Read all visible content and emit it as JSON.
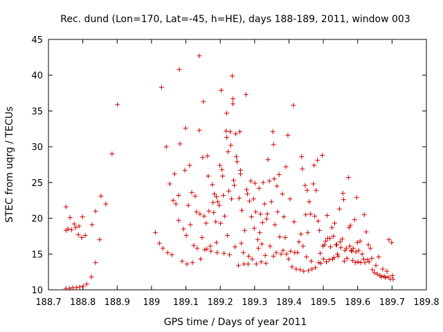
{
  "chart_data": {
    "type": "scatter",
    "title": "Rec. dund (Lon=170, Lat=-45, h=HE), days 188-189, 2011, window 003",
    "xlabel": "GPS time / Days of year 2011",
    "ylabel": "STEC from uqrg / TECUs",
    "xlim": [
      188.7,
      189.8
    ],
    "ylim": [
      10,
      45
    ],
    "xticks": [
      "188.7",
      "188.8",
      "188.9",
      "189",
      "189.1",
      "189.2",
      "189.3",
      "189.4",
      "189.5",
      "189.6",
      "189.7",
      "189.8"
    ],
    "yticks": [
      "10",
      "15",
      "20",
      "25",
      "30",
      "35",
      "40",
      "45"
    ],
    "grid": false,
    "legend": "none",
    "marker": "+",
    "color": "#cc0000",
    "points": [
      [
        188.751,
        21.6
      ],
      [
        188.751,
        18.3
      ],
      [
        188.757,
        18.5
      ],
      [
        188.763,
        20.1
      ],
      [
        188.767,
        18.4
      ],
      [
        188.775,
        19.2
      ],
      [
        188.779,
        18.7
      ],
      [
        188.787,
        17.7
      ],
      [
        188.789,
        18.9
      ],
      [
        188.797,
        17.3
      ],
      [
        188.799,
        20.2
      ],
      [
        188.807,
        17.6
      ],
      [
        188.827,
        19.1
      ],
      [
        188.837,
        21.0
      ],
      [
        188.849,
        17.0
      ],
      [
        188.853,
        23.1
      ],
      [
        188.867,
        22.0
      ],
      [
        188.885,
        29.0
      ],
      [
        188.901,
        35.9
      ],
      [
        188.751,
        10.2
      ],
      [
        188.761,
        10.2
      ],
      [
        188.771,
        10.3
      ],
      [
        188.781,
        10.3
      ],
      [
        188.791,
        10.4
      ],
      [
        188.801,
        10.5
      ],
      [
        188.811,
        10.8
      ],
      [
        188.825,
        11.8
      ],
      [
        188.837,
        13.8
      ],
      [
        189.011,
        18.0
      ],
      [
        189.029,
        38.3
      ],
      [
        189.023,
        16.5
      ],
      [
        189.033,
        15.8
      ],
      [
        189.043,
        30.0
      ],
      [
        189.047,
        15.2
      ],
      [
        189.053,
        24.8
      ],
      [
        189.059,
        14.9
      ],
      [
        189.063,
        22.5
      ],
      [
        189.067,
        26.2
      ],
      [
        189.071,
        22.0
      ],
      [
        189.079,
        23.2
      ],
      [
        189.081,
        40.8
      ],
      [
        189.083,
        30.4
      ],
      [
        189.079,
        19.7
      ],
      [
        189.089,
        14.0
      ],
      [
        189.093,
        18.5
      ],
      [
        189.097,
        26.7
      ],
      [
        189.099,
        32.6
      ],
      [
        189.101,
        17.6
      ],
      [
        189.103,
        13.6
      ],
      [
        189.107,
        21.8
      ],
      [
        189.111,
        27.4
      ],
      [
        189.113,
        19.1
      ],
      [
        189.117,
        23.6
      ],
      [
        189.119,
        13.8
      ],
      [
        189.123,
        16.2
      ],
      [
        189.127,
        23.1
      ],
      [
        189.131,
        20.9
      ],
      [
        189.133,
        15.8
      ],
      [
        189.139,
        42.7
      ],
      [
        189.139,
        32.3
      ],
      [
        189.141,
        20.6
      ],
      [
        189.143,
        14.3
      ],
      [
        189.147,
        17.3
      ],
      [
        189.149,
        28.5
      ],
      [
        189.151,
        36.3
      ],
      [
        189.153,
        20.3
      ],
      [
        189.155,
        15.6
      ],
      [
        189.159,
        19.3
      ],
      [
        189.161,
        15.7
      ],
      [
        189.163,
        28.7
      ],
      [
        189.165,
        25.9
      ],
      [
        189.167,
        21.0
      ],
      [
        189.171,
        16.1
      ],
      [
        189.173,
        15.4
      ],
      [
        189.177,
        24.7
      ],
      [
        189.179,
        22.2
      ],
      [
        189.181,
        20.8
      ],
      [
        189.183,
        23.4
      ],
      [
        189.187,
        19.5
      ],
      [
        189.189,
        16.6
      ],
      [
        189.189,
        23.0
      ],
      [
        189.191,
        15.2
      ],
      [
        189.193,
        22.3
      ],
      [
        189.197,
        21.8
      ],
      [
        189.199,
        27.4
      ],
      [
        189.201,
        19.3
      ],
      [
        189.203,
        37.9
      ],
      [
        189.205,
        26.8
      ],
      [
        189.207,
        25.9
      ],
      [
        189.209,
        23.2
      ],
      [
        189.211,
        15.1
      ],
      [
        189.213,
        20.3
      ],
      [
        189.217,
        32.2
      ],
      [
        189.219,
        34.7
      ],
      [
        189.219,
        31.3
      ],
      [
        189.221,
        17.6
      ],
      [
        189.223,
        29.3
      ],
      [
        189.225,
        23.8
      ],
      [
        189.227,
        14.9
      ],
      [
        189.229,
        32.1
      ],
      [
        189.231,
        30.2
      ],
      [
        189.233,
        22.7
      ],
      [
        189.235,
        39.9
      ],
      [
        189.237,
        36.7
      ],
      [
        189.237,
        36.0
      ],
      [
        189.239,
        25.3
      ],
      [
        189.241,
        24.6
      ],
      [
        189.243,
        16.0
      ],
      [
        189.245,
        31.8
      ],
      [
        189.247,
        28.6
      ],
      [
        189.249,
        27.9
      ],
      [
        189.253,
        13.4
      ],
      [
        189.255,
        22.8
      ],
      [
        189.257,
        32.1
      ],
      [
        189.259,
        26.2
      ],
      [
        189.259,
        26.7
      ],
      [
        189.261,
        16.5
      ],
      [
        189.263,
        21.1
      ],
      [
        189.267,
        15.2
      ],
      [
        189.269,
        13.6
      ],
      [
        189.271,
        18.3
      ],
      [
        189.275,
        37.3
      ],
      [
        189.277,
        24.0
      ],
      [
        189.279,
        23.4
      ],
      [
        189.281,
        13.6
      ],
      [
        189.283,
        14.7
      ],
      [
        189.285,
        22.4
      ],
      [
        189.289,
        25.2
      ],
      [
        189.291,
        20.2
      ],
      [
        189.293,
        14.3
      ],
      [
        189.297,
        22.7
      ],
      [
        189.299,
        18.6
      ],
      [
        189.301,
        24.9
      ],
      [
        189.303,
        20.9
      ],
      [
        189.305,
        13.6
      ],
      [
        189.309,
        17.0
      ],
      [
        189.311,
        15.8
      ],
      [
        189.313,
        24.2
      ],
      [
        189.315,
        18.0
      ],
      [
        189.317,
        20.6
      ],
      [
        189.319,
        13.9
      ],
      [
        189.321,
        16.4
      ],
      [
        189.323,
        19.4
      ],
      [
        189.325,
        25.0
      ],
      [
        189.329,
        22.0
      ],
      [
        189.331,
        14.8
      ],
      [
        189.333,
        13.7
      ],
      [
        189.335,
        19.9
      ],
      [
        189.337,
        20.6
      ],
      [
        189.339,
        28.2
      ],
      [
        189.343,
        25.2
      ],
      [
        189.345,
        16.1
      ],
      [
        189.349,
        22.3
      ],
      [
        189.353,
        32.1
      ],
      [
        189.355,
        30.3
      ],
      [
        189.355,
        14.7
      ],
      [
        189.357,
        25.5
      ],
      [
        189.359,
        19.1
      ],
      [
        189.363,
        15.2
      ],
      [
        189.365,
        24.5
      ],
      [
        189.367,
        20.9
      ],
      [
        189.371,
        26.1
      ],
      [
        189.373,
        17.4
      ],
      [
        189.377,
        15.0
      ],
      [
        189.381,
        23.4
      ],
      [
        189.383,
        15.5
      ],
      [
        189.385,
        20.2
      ],
      [
        189.389,
        17.3
      ],
      [
        189.391,
        27.2
      ],
      [
        189.393,
        15.0
      ],
      [
        189.397,
        31.6
      ],
      [
        189.399,
        14.3
      ],
      [
        189.403,
        22.7
      ],
      [
        189.405,
        15.4
      ],
      [
        189.409,
        13.2
      ],
      [
        189.413,
        35.8
      ],
      [
        189.415,
        19.5
      ],
      [
        189.417,
        15.2
      ],
      [
        189.421,
        12.9
      ],
      [
        189.425,
        15.2
      ],
      [
        189.429,
        16.7
      ],
      [
        189.433,
        12.8
      ],
      [
        189.435,
        17.8
      ],
      [
        189.437,
        28.6
      ],
      [
        189.439,
        26.9
      ],
      [
        189.441,
        16.1
      ],
      [
        189.443,
        12.6
      ],
      [
        189.447,
        24.6
      ],
      [
        189.449,
        20.5
      ],
      [
        189.451,
        14.6
      ],
      [
        189.453,
        23.9
      ],
      [
        189.455,
        18.0
      ],
      [
        189.457,
        12.7
      ],
      [
        189.459,
        22.3
      ],
      [
        189.463,
        20.6
      ],
      [
        189.465,
        14.0
      ],
      [
        189.467,
        12.9
      ],
      [
        189.471,
        24.8
      ],
      [
        189.473,
        27.4
      ],
      [
        189.475,
        20.3
      ],
      [
        189.477,
        13.1
      ],
      [
        189.479,
        23.9
      ],
      [
        189.483,
        28.1
      ],
      [
        189.485,
        19.6
      ],
      [
        189.487,
        13.8
      ],
      [
        189.489,
        18.3
      ],
      [
        189.491,
        15.1
      ],
      [
        189.493,
        13.7
      ],
      [
        189.497,
        28.8
      ],
      [
        189.499,
        16.1
      ],
      [
        189.501,
        14.3
      ],
      [
        189.503,
        16.3
      ],
      [
        189.507,
        16.8
      ],
      [
        189.509,
        13.9
      ],
      [
        189.511,
        20.4
      ],
      [
        189.513,
        17.2
      ],
      [
        189.517,
        14.2
      ],
      [
        189.519,
        17.2
      ],
      [
        189.521,
        16.0
      ],
      [
        189.525,
        18.7
      ],
      [
        189.527,
        14.3
      ],
      [
        189.529,
        17.5
      ],
      [
        189.531,
        14.5
      ],
      [
        189.533,
        19.3
      ],
      [
        189.537,
        16.3
      ],
      [
        189.539,
        16.3
      ],
      [
        189.541,
        15.0
      ],
      [
        189.543,
        14.7
      ],
      [
        189.547,
        21.3
      ],
      [
        189.549,
        16.7
      ],
      [
        189.551,
        15.9
      ],
      [
        189.555,
        17.1
      ],
      [
        189.557,
        23.5
      ],
      [
        189.559,
        22.6
      ],
      [
        189.561,
        14.0
      ],
      [
        189.563,
        15.5
      ],
      [
        189.567,
        15.8
      ],
      [
        189.569,
        14.4
      ],
      [
        189.573,
        25.7
      ],
      [
        189.575,
        18.7
      ],
      [
        189.577,
        16.1
      ],
      [
        189.579,
        19.0
      ],
      [
        189.581,
        15.5
      ],
      [
        189.583,
        15.4
      ],
      [
        189.585,
        14.1
      ],
      [
        189.587,
        15.8
      ],
      [
        189.591,
        19.8
      ],
      [
        189.593,
        13.8
      ],
      [
        189.595,
        15.3
      ],
      [
        189.597,
        22.9
      ],
      [
        189.599,
        16.6
      ],
      [
        189.601,
        13.9
      ],
      [
        189.603,
        15.5
      ],
      [
        189.607,
        16.8
      ],
      [
        189.609,
        13.8
      ],
      [
        189.613,
        15.0
      ],
      [
        189.617,
        14.3
      ],
      [
        189.619,
        20.5
      ],
      [
        189.621,
        13.8
      ],
      [
        189.625,
        18.1
      ],
      [
        189.629,
        14.2
      ],
      [
        189.631,
        16.3
      ],
      [
        189.633,
        13.9
      ],
      [
        189.637,
        15.8
      ],
      [
        189.641,
        14.4
      ],
      [
        189.643,
        12.8
      ],
      [
        189.649,
        12.4
      ],
      [
        189.653,
        13.4
      ],
      [
        189.657,
        12.2
      ],
      [
        189.661,
        14.6
      ],
      [
        189.665,
        12.0
      ],
      [
        189.669,
        11.8
      ],
      [
        189.673,
        12.9
      ],
      [
        189.677,
        11.9
      ],
      [
        189.681,
        11.7
      ],
      [
        189.685,
        12.6
      ],
      [
        189.689,
        11.8
      ],
      [
        189.691,
        17.0
      ],
      [
        189.695,
        11.5
      ],
      [
        189.699,
        16.6
      ],
      [
        189.701,
        12.0
      ],
      [
        189.703,
        11.5
      ]
    ]
  }
}
